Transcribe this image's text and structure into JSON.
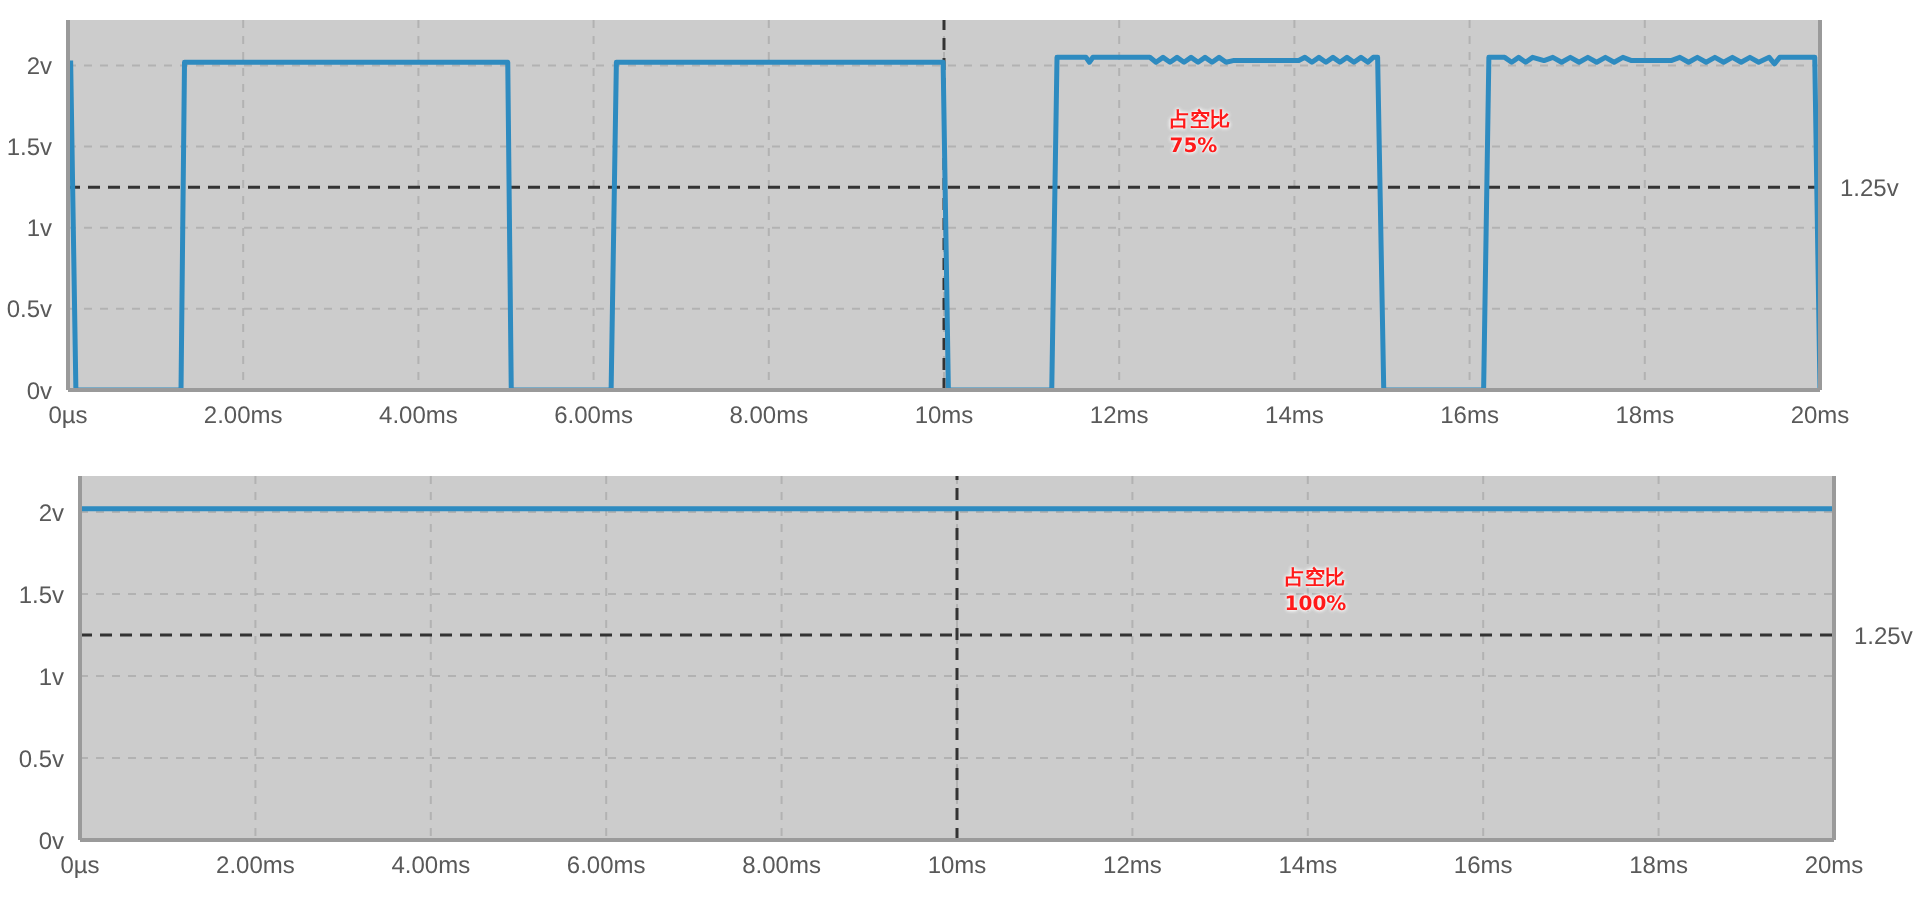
{
  "chart_data": [
    {
      "type": "line",
      "x": [
        0.03,
        0.09,
        1.29,
        1.33,
        5.02,
        5.06,
        6.2,
        6.26,
        9.99,
        10.05,
        11.23,
        11.29,
        11.62,
        11.66,
        11.7,
        12.35,
        12.42,
        12.5,
        12.58,
        12.66,
        12.74,
        12.82,
        12.9,
        12.98,
        13.06,
        13.14,
        13.22,
        13.3,
        14.05,
        14.12,
        14.2,
        14.28,
        14.36,
        14.44,
        14.52,
        14.6,
        14.68,
        14.76,
        14.84,
        14.9,
        14.95,
        15.02,
        16.16,
        16.22,
        16.4,
        16.48,
        16.56,
        16.64,
        16.72,
        16.85,
        16.95,
        17.05,
        17.15,
        17.25,
        17.35,
        17.45,
        17.55,
        17.65,
        17.75,
        17.85,
        18.3,
        18.4,
        18.5,
        18.6,
        18.7,
        18.8,
        18.9,
        19.0,
        19.1,
        19.2,
        19.3,
        19.42,
        19.48,
        19.54,
        19.94,
        20.0
      ],
      "values": [
        2.03,
        0,
        0,
        2.02,
        2.02,
        0,
        0,
        2.02,
        2.02,
        0,
        0,
        2.05,
        2.05,
        2.02,
        2.05,
        2.05,
        2.02,
        2.05,
        2.02,
        2.05,
        2.02,
        2.05,
        2.02,
        2.05,
        2.02,
        2.05,
        2.02,
        2.03,
        2.03,
        2.05,
        2.02,
        2.05,
        2.02,
        2.05,
        2.02,
        2.05,
        2.02,
        2.05,
        2.02,
        2.05,
        2.05,
        0,
        0,
        2.05,
        2.05,
        2.02,
        2.05,
        2.02,
        2.05,
        2.03,
        2.05,
        2.02,
        2.05,
        2.02,
        2.05,
        2.02,
        2.05,
        2.02,
        2.05,
        2.03,
        2.03,
        2.05,
        2.02,
        2.05,
        2.02,
        2.05,
        2.02,
        2.05,
        2.02,
        2.05,
        2.02,
        2.05,
        2.01,
        2.05,
        2.05,
        0
      ],
      "color": "#2e8bc0",
      "xlim": [
        0,
        20
      ],
      "xticks": [
        {
          "value": 0,
          "label": "0µs"
        },
        {
          "value": 2,
          "label": "2.00ms"
        },
        {
          "value": 4,
          "label": "4.00ms"
        },
        {
          "value": 6,
          "label": "6.00ms"
        },
        {
          "value": 8,
          "label": "8.00ms"
        },
        {
          "value": 10,
          "label": "10ms"
        },
        {
          "value": 12,
          "label": "12ms"
        },
        {
          "value": 14,
          "label": "14ms"
        },
        {
          "value": 16,
          "label": "16ms"
        },
        {
          "value": 18,
          "label": "18ms"
        },
        {
          "value": 20,
          "label": "20ms"
        }
      ],
      "ylim": [
        0,
        2.28
      ],
      "yticks": [
        {
          "value": 0,
          "label": "0v"
        },
        {
          "value": 0.5,
          "label": "0.5v"
        },
        {
          "value": 1,
          "label": "1v"
        },
        {
          "value": 1.5,
          "label": "1.5v"
        },
        {
          "value": 2,
          "label": "2v"
        }
      ],
      "grid": true,
      "ref_lines": [
        {
          "axis": "x",
          "value": 10,
          "color": "#333333",
          "line_style": "dashed"
        },
        {
          "axis": "y",
          "value": 1.25,
          "label": "1.25v",
          "color": "#333333",
          "line_style": "dashed"
        }
      ],
      "annotations": [
        "占空比\n75%"
      ]
    },
    {
      "type": "line",
      "x": [
        0,
        20
      ],
      "values": [
        2.02,
        2.02
      ],
      "color": "#2e8bc0",
      "xlim": [
        0,
        20
      ],
      "xticks": [
        {
          "value": 0,
          "label": "0µs"
        },
        {
          "value": 2,
          "label": "2.00ms"
        },
        {
          "value": 4,
          "label": "4.00ms"
        },
        {
          "value": 6,
          "label": "6.00ms"
        },
        {
          "value": 8,
          "label": "8.00ms"
        },
        {
          "value": 10,
          "label": "10ms"
        },
        {
          "value": 12,
          "label": "12ms"
        },
        {
          "value": 14,
          "label": "14ms"
        },
        {
          "value": 16,
          "label": "16ms"
        },
        {
          "value": 18,
          "label": "18ms"
        },
        {
          "value": 20,
          "label": "20ms"
        }
      ],
      "ylim": [
        0,
        2.22
      ],
      "yticks": [
        {
          "value": 0,
          "label": "0v"
        },
        {
          "value": 0.5,
          "label": "0.5v"
        },
        {
          "value": 1,
          "label": "1v"
        },
        {
          "value": 1.5,
          "label": "1.5v"
        },
        {
          "value": 2,
          "label": "2v"
        }
      ],
      "grid": true,
      "ref_lines": [
        {
          "axis": "x",
          "value": 10,
          "color": "#333333",
          "line_style": "dashed"
        },
        {
          "axis": "y",
          "value": 1.25,
          "label": "1.25v",
          "color": "#333333",
          "line_style": "dashed"
        }
      ],
      "annotations": [
        "占空比\n100%"
      ]
    }
  ]
}
